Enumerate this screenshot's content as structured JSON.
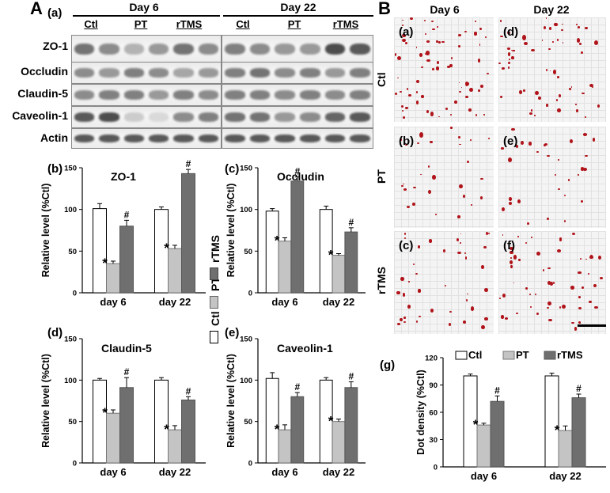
{
  "panelA": {
    "letter": "A",
    "sub": "(a)",
    "day6": "Day 6",
    "day22": "Day 22",
    "groups": [
      "Ctl",
      "PT",
      "rTMS"
    ],
    "proteins": [
      "ZO-1",
      "Occludin",
      "Claudin-5",
      "Caveolin-1",
      "Actin"
    ]
  },
  "panelB": {
    "letter": "B",
    "day6": "Day 6",
    "day22": "Day 22",
    "rows": [
      "Ctl",
      "PT",
      "rTMS"
    ],
    "tiles": [
      "(a)",
      "(d)",
      "(b)",
      "(e)",
      "(c)",
      "(f)"
    ]
  },
  "legend": {
    "ctl": "Ctl",
    "pt": "PT",
    "rtms": "rTMS"
  },
  "colors": {
    "ctl": "#ffffff",
    "pt": "#c4c4c4",
    "rtms": "#6f6f6f",
    "dots": "#b0141a"
  },
  "chart_data": [
    {
      "id": "b",
      "letter": "(b)",
      "type": "bar",
      "title": "ZO-1",
      "ylabel": "Relative level (%Ctl)",
      "ylim": [
        0,
        150
      ],
      "yticks": [
        0,
        50,
        100,
        150
      ],
      "categories": [
        "day 6",
        "day 22"
      ],
      "series": [
        {
          "name": "Ctl",
          "values": [
            101,
            100
          ],
          "errors": [
            6,
            3
          ]
        },
        {
          "name": "PT",
          "values": [
            35,
            53
          ],
          "errors": [
            3,
            4
          ]
        },
        {
          "name": "rTMS",
          "values": [
            80,
            143
          ],
          "errors": [
            7,
            5
          ]
        }
      ],
      "marks": [
        "",
        "*",
        "#"
      ]
    },
    {
      "id": "c",
      "letter": "(c)",
      "type": "bar",
      "title": "Occludin",
      "ylabel": "Relative level (%Ctl)",
      "ylim": [
        0,
        150
      ],
      "yticks": [
        0,
        50,
        100,
        150
      ],
      "categories": [
        "day 6",
        "day 22"
      ],
      "series": [
        {
          "name": "Ctl",
          "values": [
            98,
            100
          ],
          "errors": [
            3,
            4
          ]
        },
        {
          "name": "PT",
          "values": [
            62,
            45
          ],
          "errors": [
            4,
            2
          ]
        },
        {
          "name": "rTMS",
          "values": [
            134,
            73
          ],
          "errors": [
            5,
            5
          ]
        }
      ],
      "marks": [
        "",
        "*",
        "#"
      ]
    },
    {
      "id": "d",
      "letter": "(d)",
      "type": "bar",
      "title": "Claudin-5",
      "ylabel": "Relative level (%Ctl)",
      "ylim": [
        0,
        150
      ],
      "yticks": [
        0,
        50,
        100,
        150
      ],
      "categories": [
        "day 6",
        "day 22"
      ],
      "series": [
        {
          "name": "Ctl",
          "values": [
            100,
            100
          ],
          "errors": [
            2,
            3
          ]
        },
        {
          "name": "PT",
          "values": [
            60,
            40
          ],
          "errors": [
            4,
            5
          ]
        },
        {
          "name": "rTMS",
          "values": [
            91,
            76
          ],
          "errors": [
            12,
            4
          ]
        }
      ],
      "marks": [
        "",
        "*",
        "#"
      ]
    },
    {
      "id": "e",
      "letter": "(e)",
      "type": "bar",
      "title": "Caveolin-1",
      "ylabel": "Relative level (%Ctl)",
      "ylim": [
        0,
        150
      ],
      "yticks": [
        0,
        50,
        100,
        150
      ],
      "categories": [
        "day 6",
        "day 22"
      ],
      "series": [
        {
          "name": "Ctl",
          "values": [
            102,
            100
          ],
          "errors": [
            7,
            3
          ]
        },
        {
          "name": "PT",
          "values": [
            40,
            50
          ],
          "errors": [
            6,
            3
          ]
        },
        {
          "name": "rTMS",
          "values": [
            80,
            91
          ],
          "errors": [
            5,
            7
          ]
        }
      ],
      "marks": [
        "",
        "*",
        "#"
      ]
    },
    {
      "id": "g",
      "letter": "(g)",
      "type": "bar",
      "title": "",
      "ylabel": "Dot density (%Ctl)",
      "ylim": [
        0,
        120
      ],
      "yticks": [
        0,
        30,
        60,
        90,
        120
      ],
      "categories": [
        "day 6",
        "day 22"
      ],
      "series": [
        {
          "name": "Ctl",
          "values": [
            100,
            100
          ],
          "errors": [
            2,
            3
          ]
        },
        {
          "name": "PT",
          "values": [
            46,
            40
          ],
          "errors": [
            2,
            5
          ]
        },
        {
          "name": "rTMS",
          "values": [
            72,
            76
          ],
          "errors": [
            6,
            4
          ]
        }
      ],
      "marks": [
        "",
        "*",
        "#"
      ]
    }
  ]
}
